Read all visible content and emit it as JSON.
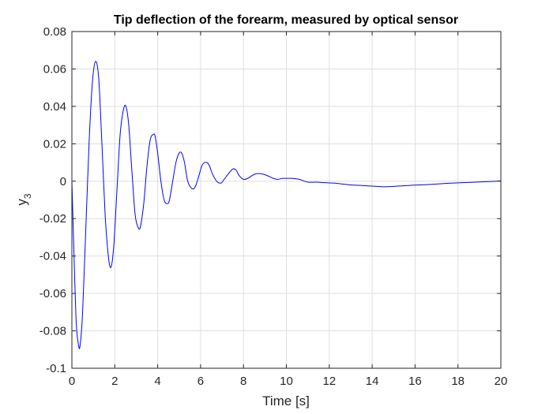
{
  "chart_data": {
    "type": "line",
    "title": "Tip deflection of the forearm, measured by optical sensor",
    "xlabel": "Time [s]",
    "ylabel": {
      "base": "y",
      "subscript": "3"
    },
    "xlim": [
      0,
      20
    ],
    "ylim": [
      -0.1,
      0.08
    ],
    "xticks": [
      0,
      2,
      4,
      6,
      8,
      10,
      12,
      14,
      16,
      18,
      20
    ],
    "xtick_labels": [
      "0",
      "2",
      "4",
      "6",
      "8",
      "10",
      "12",
      "14",
      "16",
      "18",
      "20"
    ],
    "yticks": [
      -0.1,
      -0.08,
      -0.06,
      -0.04,
      -0.02,
      0,
      0.02,
      0.04,
      0.06,
      0.08
    ],
    "ytick_labels": [
      "-0.1",
      "-0.08",
      "-0.06",
      "-0.04",
      "-0.02",
      "0",
      "0.02",
      "0.04",
      "0.06",
      "0.08"
    ],
    "grid": true,
    "colors": {
      "series": "#0000ff",
      "grid": "#dfdfdf",
      "axis": "#262626",
      "background": "#ffffff"
    },
    "series": [
      {
        "x": [
          0,
          0.1,
          0.2,
          0.3,
          0.38,
          0.5,
          0.65,
          0.8,
          0.95,
          1.1,
          1.25,
          1.4,
          1.55,
          1.7,
          1.82,
          1.95,
          2.1,
          2.25,
          2.4,
          2.52,
          2.65,
          2.8,
          2.95,
          3.1,
          3.2,
          3.35,
          3.5,
          3.65,
          3.8,
          3.88,
          4.0,
          4.15,
          4.3,
          4.45,
          4.55,
          4.7,
          4.85,
          5.0,
          5.12,
          5.25,
          5.4,
          5.6,
          5.75,
          5.9,
          6.05,
          6.2,
          6.38,
          6.55,
          6.75,
          6.95,
          7.1,
          7.3,
          7.5,
          7.65,
          7.8,
          8.0,
          8.2,
          8.4,
          8.6,
          8.8,
          9.0,
          9.2,
          9.4,
          9.6,
          9.8,
          10.0,
          10.3,
          10.6,
          11.0,
          11.4,
          11.8,
          12.2,
          12.6,
          13.0,
          13.4,
          13.8,
          14.2,
          14.6,
          15.0,
          15.4,
          15.8,
          16.2,
          16.6,
          17.0,
          17.4,
          17.8,
          18.2,
          18.6,
          19.0,
          19.4,
          19.8,
          20.0
        ],
        "y": [
          0,
          -0.04,
          -0.075,
          -0.087,
          -0.088,
          -0.07,
          -0.025,
          0.02,
          0.052,
          0.064,
          0.055,
          0.02,
          -0.018,
          -0.04,
          -0.046,
          -0.035,
          -0.005,
          0.025,
          0.038,
          0.04,
          0.03,
          0.005,
          -0.018,
          -0.025,
          -0.024,
          -0.012,
          0.008,
          0.022,
          0.025,
          0.024,
          0.015,
          0.0,
          -0.01,
          -0.012,
          -0.01,
          0.0,
          0.01,
          0.015,
          0.015,
          0.01,
          0.0,
          -0.004,
          -0.003,
          0.002,
          0.008,
          0.01,
          0.009,
          0.004,
          0.0,
          -0.001,
          0.001,
          0.004,
          0.0065,
          0.006,
          0.003,
          0.001,
          0.0015,
          0.003,
          0.004,
          0.004,
          0.0035,
          0.0025,
          0.0015,
          0.001,
          0.0015,
          0.0015,
          0.0015,
          0.001,
          -0.0005,
          -0.0005,
          -0.0008,
          -0.001,
          -0.0015,
          -0.002,
          -0.0022,
          -0.0025,
          -0.0028,
          -0.003,
          -0.0028,
          -0.0025,
          -0.0022,
          -0.002,
          -0.0018,
          -0.0015,
          -0.0012,
          -0.001,
          -0.0008,
          -0.0006,
          -0.0004,
          -0.0002,
          0.0,
          0.0002
        ]
      }
    ]
  }
}
